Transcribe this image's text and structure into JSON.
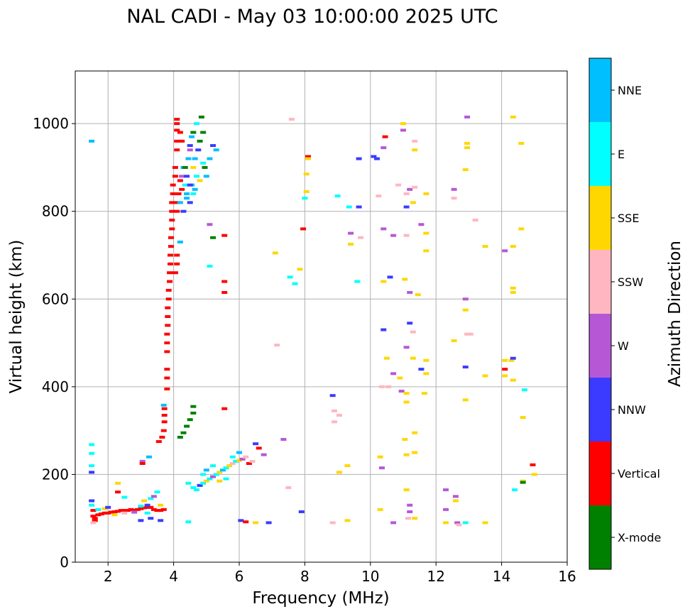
{
  "chart_data": {
    "type": "scatter",
    "title": "NAL CADI - May 03 10:00:00 2025 UTC",
    "xlabel": "Frequency (MHz)",
    "ylabel": "Virtual height (km)",
    "xlim": [
      1,
      16
    ],
    "ylim": [
      0,
      1120
    ],
    "xticks": [
      2,
      4,
      6,
      8,
      10,
      12,
      14,
      16
    ],
    "yticks": [
      0,
      200,
      400,
      600,
      800,
      1000
    ],
    "grid": true,
    "colorbar": {
      "label": "Azimuth Direction",
      "categories": [
        {
          "name": "X-mode",
          "color": "#008000"
        },
        {
          "name": "Vertical",
          "color": "#ff0000"
        },
        {
          "name": "NNW",
          "color": "#3b3bff"
        },
        {
          "name": "W",
          "color": "#b658d6"
        },
        {
          "name": "SSW",
          "color": "#ffb6c1"
        },
        {
          "name": "SSE",
          "color": "#ffd700"
        },
        {
          "name": "E",
          "color": "#00ffff"
        },
        {
          "name": "NNE",
          "color": "#00bfff"
        }
      ]
    },
    "points_note": "each point: [frequency MHz, virtual height km, azimuth category index]",
    "points": [
      [
        1.5,
        960,
        7
      ],
      [
        1.5,
        268,
        6
      ],
      [
        1.5,
        248,
        6
      ],
      [
        1.5,
        220,
        6
      ],
      [
        1.5,
        205,
        2
      ],
      [
        1.5,
        140,
        2
      ],
      [
        1.5,
        130,
        6
      ],
      [
        1.55,
        118,
        1
      ],
      [
        1.55,
        105,
        1
      ],
      [
        1.6,
        100,
        1
      ],
      [
        1.6,
        95,
        1
      ],
      [
        1.55,
        90,
        4
      ],
      [
        1.7,
        108,
        1
      ],
      [
        1.8,
        110,
        1
      ],
      [
        1.9,
        112,
        1
      ],
      [
        2.0,
        112,
        1
      ],
      [
        2.1,
        114,
        1
      ],
      [
        2.2,
        115,
        1
      ],
      [
        2.3,
        116,
        1
      ],
      [
        2.4,
        118,
        1
      ],
      [
        2.5,
        118,
        1
      ],
      [
        2.6,
        118,
        1
      ],
      [
        2.7,
        120,
        1
      ],
      [
        2.8,
        118,
        1
      ],
      [
        2.9,
        120,
        1
      ],
      [
        3.0,
        122,
        1
      ],
      [
        3.1,
        124,
        1
      ],
      [
        3.2,
        125,
        1
      ],
      [
        3.3,
        125,
        1
      ],
      [
        3.4,
        120,
        1
      ],
      [
        3.5,
        118,
        1
      ],
      [
        3.6,
        118,
        1
      ],
      [
        3.7,
        120,
        1
      ],
      [
        1.7,
        120,
        6
      ],
      [
        1.9,
        122,
        5
      ],
      [
        2.2,
        108,
        5
      ],
      [
        2.5,
        112,
        4
      ],
      [
        2.8,
        114,
        3
      ],
      [
        3.0,
        128,
        6
      ],
      [
        3.1,
        140,
        5
      ],
      [
        3.2,
        130,
        2
      ],
      [
        3.3,
        145,
        6
      ],
      [
        3.4,
        150,
        3
      ],
      [
        3.5,
        160,
        6
      ],
      [
        3.6,
        130,
        5
      ],
      [
        3.2,
        112,
        6
      ],
      [
        3.3,
        100,
        2
      ],
      [
        3.0,
        95,
        2
      ],
      [
        3.6,
        95,
        2
      ],
      [
        2.3,
        180,
        5
      ],
      [
        2.5,
        148,
        6
      ],
      [
        2.0,
        125,
        2
      ],
      [
        3.05,
        230,
        3
      ],
      [
        3.05,
        225,
        1
      ],
      [
        3.25,
        240,
        7
      ],
      [
        2.3,
        160,
        1
      ],
      [
        3.55,
        275,
        1
      ],
      [
        3.65,
        285,
        1
      ],
      [
        3.7,
        300,
        1
      ],
      [
        3.72,
        320,
        1
      ],
      [
        3.72,
        335,
        1
      ],
      [
        3.72,
        350,
        1
      ],
      [
        3.7,
        358,
        7
      ],
      [
        3.8,
        395,
        1
      ],
      [
        3.8,
        420,
        1
      ],
      [
        3.8,
        440,
        1
      ],
      [
        3.8,
        480,
        1
      ],
      [
        3.8,
        500,
        1
      ],
      [
        3.8,
        520,
        1
      ],
      [
        3.82,
        540,
        1
      ],
      [
        3.82,
        560,
        1
      ],
      [
        3.82,
        580,
        1
      ],
      [
        3.85,
        600,
        1
      ],
      [
        3.85,
        620,
        1
      ],
      [
        3.88,
        640,
        1
      ],
      [
        3.88,
        660,
        1
      ],
      [
        3.9,
        680,
        1
      ],
      [
        3.9,
        700,
        1
      ],
      [
        3.92,
        720,
        1
      ],
      [
        3.92,
        740,
        1
      ],
      [
        3.95,
        760,
        1
      ],
      [
        3.95,
        780,
        1
      ],
      [
        3.95,
        800,
        1
      ],
      [
        3.95,
        820,
        1
      ],
      [
        3.98,
        840,
        1
      ],
      [
        3.98,
        860,
        1
      ],
      [
        4.05,
        880,
        1
      ],
      [
        4.05,
        900,
        1
      ],
      [
        4.1,
        940,
        1
      ],
      [
        4.1,
        960,
        1
      ],
      [
        4.1,
        985,
        1
      ],
      [
        4.1,
        1000,
        1
      ],
      [
        4.1,
        1010,
        1
      ],
      [
        4.2,
        980,
        1
      ],
      [
        4.25,
        960,
        1
      ],
      [
        4.15,
        840,
        1
      ],
      [
        4.1,
        820,
        1
      ],
      [
        4.1,
        800,
        1
      ],
      [
        4.1,
        700,
        1
      ],
      [
        4.1,
        680,
        1
      ],
      [
        4.05,
        660,
        1
      ],
      [
        4.2,
        870,
        1
      ],
      [
        4.25,
        850,
        1
      ],
      [
        4.25,
        880,
        3
      ],
      [
        4.3,
        900,
        7
      ],
      [
        4.35,
        860,
        6
      ],
      [
        4.4,
        880,
        2
      ],
      [
        4.45,
        920,
        7
      ],
      [
        4.5,
        940,
        3
      ],
      [
        4.55,
        860,
        7
      ],
      [
        4.6,
        900,
        5
      ],
      [
        4.65,
        920,
        7
      ],
      [
        4.7,
        880,
        6
      ],
      [
        4.75,
        940,
        2
      ],
      [
        4.8,
        960,
        0
      ],
      [
        4.85,
        1015,
        0
      ],
      [
        4.9,
        980,
        0
      ],
      [
        4.95,
        900,
        0
      ],
      [
        5.0,
        880,
        7
      ],
      [
        5.1,
        920,
        7
      ],
      [
        5.2,
        950,
        2
      ],
      [
        5.3,
        940,
        7
      ],
      [
        4.4,
        830,
        7
      ],
      [
        4.5,
        820,
        2
      ],
      [
        4.6,
        840,
        6
      ],
      [
        4.2,
        820,
        7
      ],
      [
        4.3,
        800,
        2
      ],
      [
        4.2,
        730,
        7
      ],
      [
        4.35,
        900,
        0
      ],
      [
        4.55,
        970,
        7
      ],
      [
        4.7,
        1000,
        6
      ],
      [
        4.4,
        840,
        7
      ],
      [
        4.5,
        860,
        2
      ],
      [
        4.65,
        850,
        7
      ],
      [
        4.8,
        870,
        5
      ],
      [
        4.9,
        910,
        6
      ],
      [
        4.5,
        950,
        2
      ],
      [
        4.6,
        980,
        0
      ],
      [
        4.2,
        285,
        0
      ],
      [
        4.3,
        295,
        0
      ],
      [
        4.4,
        310,
        0
      ],
      [
        4.5,
        325,
        0
      ],
      [
        4.6,
        340,
        0
      ],
      [
        4.6,
        355,
        0
      ],
      [
        4.45,
        180,
        6
      ],
      [
        4.6,
        170,
        6
      ],
      [
        4.7,
        165,
        6
      ],
      [
        4.8,
        175,
        2
      ],
      [
        4.9,
        180,
        6
      ],
      [
        5.0,
        185,
        5
      ],
      [
        5.1,
        190,
        6
      ],
      [
        5.2,
        195,
        3
      ],
      [
        5.3,
        200,
        6
      ],
      [
        5.4,
        205,
        5
      ],
      [
        5.5,
        210,
        7
      ],
      [
        5.6,
        215,
        6
      ],
      [
        5.7,
        220,
        5
      ],
      [
        5.8,
        225,
        4
      ],
      [
        5.9,
        230,
        6
      ],
      [
        6.0,
        232,
        5
      ],
      [
        6.1,
        235,
        3
      ],
      [
        6.2,
        240,
        4
      ],
      [
        6.3,
        225,
        1
      ],
      [
        6.4,
        230,
        4
      ],
      [
        6.5,
        270,
        2
      ],
      [
        6.6,
        260,
        1
      ],
      [
        6.75,
        245,
        3
      ],
      [
        7.35,
        280,
        3
      ],
      [
        4.9,
        200,
        6
      ],
      [
        5.0,
        210,
        7
      ],
      [
        5.2,
        220,
        6
      ],
      [
        5.4,
        185,
        5
      ],
      [
        5.6,
        190,
        6
      ],
      [
        5.8,
        240,
        6
      ],
      [
        6.0,
        250,
        7
      ],
      [
        4.45,
        92,
        6
      ],
      [
        5.55,
        350,
        1
      ],
      [
        5.55,
        615,
        1
      ],
      [
        5.55,
        640,
        1
      ],
      [
        5.55,
        745,
        1
      ],
      [
        5.2,
        740,
        0
      ],
      [
        5.1,
        770,
        3
      ],
      [
        5.1,
        675,
        6
      ],
      [
        6.05,
        95,
        2
      ],
      [
        6.2,
        92,
        1
      ],
      [
        6.5,
        90,
        5
      ],
      [
        6.9,
        90,
        2
      ],
      [
        7.5,
        170,
        4
      ],
      [
        7.9,
        115,
        2
      ],
      [
        7.6,
        1010,
        4
      ],
      [
        7.95,
        760,
        1
      ],
      [
        7.85,
        668,
        5
      ],
      [
        7.7,
        635,
        6
      ],
      [
        7.55,
        650,
        6
      ],
      [
        7.1,
        705,
        5
      ],
      [
        7.15,
        495,
        4
      ],
      [
        8.0,
        830,
        6
      ],
      [
        8.05,
        845,
        5
      ],
      [
        8.05,
        885,
        5
      ],
      [
        8.1,
        925,
        1
      ],
      [
        8.1,
        920,
        5
      ],
      [
        8.85,
        380,
        2
      ],
      [
        8.9,
        345,
        4
      ],
      [
        8.9,
        320,
        4
      ],
      [
        9.05,
        335,
        4
      ],
      [
        9.05,
        205,
        5
      ],
      [
        9.0,
        835,
        6
      ],
      [
        9.35,
        810,
        6
      ],
      [
        9.4,
        750,
        3
      ],
      [
        9.4,
        725,
        5
      ],
      [
        9.3,
        220,
        5
      ],
      [
        9.3,
        95,
        5
      ],
      [
        8.85,
        90,
        4
      ],
      [
        9.65,
        810,
        2
      ],
      [
        9.65,
        920,
        2
      ],
      [
        9.7,
        740,
        4
      ],
      [
        9.6,
        640,
        6
      ],
      [
        10.1,
        925,
        2
      ],
      [
        10.2,
        920,
        2
      ],
      [
        10.25,
        835,
        4
      ],
      [
        10.3,
        240,
        5
      ],
      [
        10.35,
        215,
        3
      ],
      [
        10.3,
        120,
        5
      ],
      [
        10.35,
        400,
        4
      ],
      [
        10.4,
        530,
        2
      ],
      [
        10.4,
        640,
        5
      ],
      [
        10.4,
        760,
        3
      ],
      [
        10.4,
        945,
        3
      ],
      [
        10.45,
        970,
        1
      ],
      [
        10.5,
        465,
        5
      ],
      [
        10.55,
        400,
        4
      ],
      [
        10.6,
        650,
        2
      ],
      [
        10.7,
        745,
        3
      ],
      [
        10.7,
        430,
        3
      ],
      [
        10.7,
        90,
        3
      ],
      [
        10.85,
        860,
        4
      ],
      [
        10.95,
        390,
        3
      ],
      [
        10.9,
        420,
        5
      ],
      [
        11.0,
        1000,
        5
      ],
      [
        11.0,
        985,
        3
      ],
      [
        11.1,
        840,
        4
      ],
      [
        11.1,
        810,
        2
      ],
      [
        11.1,
        745,
        4
      ],
      [
        11.05,
        645,
        5
      ],
      [
        11.1,
        490,
        3
      ],
      [
        11.1,
        385,
        5
      ],
      [
        11.1,
        365,
        5
      ],
      [
        11.05,
        280,
        5
      ],
      [
        11.1,
        245,
        5
      ],
      [
        11.1,
        165,
        5
      ],
      [
        11.2,
        130,
        3
      ],
      [
        11.2,
        115,
        3
      ],
      [
        11.15,
        100,
        4
      ],
      [
        11.2,
        850,
        3
      ],
      [
        11.2,
        615,
        3
      ],
      [
        11.2,
        545,
        2
      ],
      [
        11.3,
        525,
        4
      ],
      [
        11.3,
        465,
        5
      ],
      [
        11.35,
        960,
        4
      ],
      [
        11.35,
        940,
        5
      ],
      [
        11.35,
        855,
        4
      ],
      [
        11.3,
        820,
        5
      ],
      [
        11.35,
        295,
        5
      ],
      [
        11.35,
        250,
        5
      ],
      [
        11.35,
        100,
        5
      ],
      [
        11.45,
        610,
        5
      ],
      [
        11.55,
        440,
        2
      ],
      [
        11.55,
        770,
        3
      ],
      [
        11.7,
        840,
        5
      ],
      [
        11.7,
        750,
        5
      ],
      [
        11.7,
        710,
        5
      ],
      [
        11.7,
        460,
        5
      ],
      [
        11.7,
        430,
        5
      ],
      [
        11.65,
        385,
        5
      ],
      [
        12.3,
        165,
        3
      ],
      [
        12.3,
        120,
        3
      ],
      [
        12.3,
        90,
        5
      ],
      [
        12.55,
        850,
        3
      ],
      [
        12.55,
        830,
        4
      ],
      [
        12.55,
        505,
        5
      ],
      [
        12.6,
        150,
        3
      ],
      [
        12.6,
        140,
        5
      ],
      [
        12.65,
        90,
        3
      ],
      [
        12.7,
        85,
        4
      ],
      [
        12.95,
        1015,
        3
      ],
      [
        12.95,
        955,
        5
      ],
      [
        12.95,
        945,
        5
      ],
      [
        12.9,
        895,
        5
      ],
      [
        12.9,
        600,
        3
      ],
      [
        12.9,
        575,
        5
      ],
      [
        12.95,
        520,
        4
      ],
      [
        12.9,
        445,
        2
      ],
      [
        12.9,
        370,
        5
      ],
      [
        12.9,
        90,
        6
      ],
      [
        13.05,
        520,
        4
      ],
      [
        13.2,
        780,
        4
      ],
      [
        13.5,
        720,
        5
      ],
      [
        13.5,
        425,
        5
      ],
      [
        13.5,
        90,
        5
      ],
      [
        14.1,
        710,
        3
      ],
      [
        14.1,
        460,
        5
      ],
      [
        14.1,
        440,
        1
      ],
      [
        14.1,
        425,
        5
      ],
      [
        14.3,
        460,
        5
      ],
      [
        14.35,
        1015,
        5
      ],
      [
        14.35,
        720,
        5
      ],
      [
        14.35,
        625,
        5
      ],
      [
        14.35,
        615,
        5
      ],
      [
        14.35,
        465,
        2
      ],
      [
        14.35,
        415,
        5
      ],
      [
        14.4,
        165,
        6
      ],
      [
        14.6,
        760,
        5
      ],
      [
        14.6,
        955,
        5
      ],
      [
        14.65,
        330,
        5
      ],
      [
        14.65,
        185,
        5
      ],
      [
        14.65,
        182,
        0
      ],
      [
        14.7,
        393,
        6
      ],
      [
        14.95,
        222,
        1
      ],
      [
        15.0,
        200,
        5
      ]
    ]
  }
}
